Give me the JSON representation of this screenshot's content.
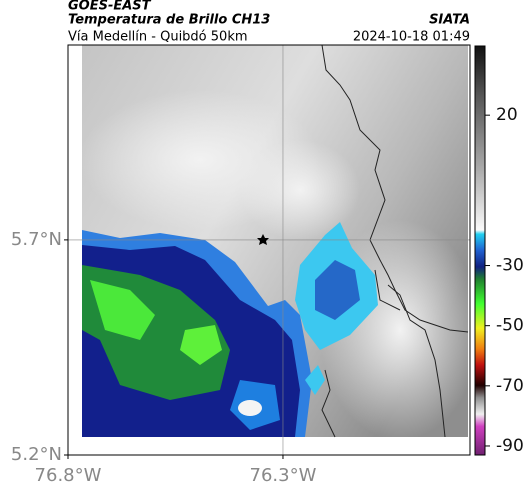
{
  "header": {
    "title": "GOES-EAST",
    "subtitle": "Temperatura de Brillo CH13",
    "source": "SIATA",
    "region": "Vía Medellín - Quibdó 50km",
    "timestamp": "2024-10-18 01:49"
  },
  "map": {
    "xlim": [
      -76.8,
      -75.865
    ],
    "ylim": [
      5.2,
      6.153
    ],
    "xticks": [
      {
        "value": -76.8,
        "label": "76.8°W"
      },
      {
        "value": -76.3,
        "label": "76.3°W"
      }
    ],
    "yticks": [
      {
        "value": 5.2,
        "label": "5.2°N"
      },
      {
        "value": 5.7,
        "label": "5.7°N"
      }
    ]
  },
  "colorbar": {
    "lim": [
      -93,
      43
    ],
    "ticks": [
      20,
      -30,
      -50,
      -70,
      -90
    ]
  }
}
